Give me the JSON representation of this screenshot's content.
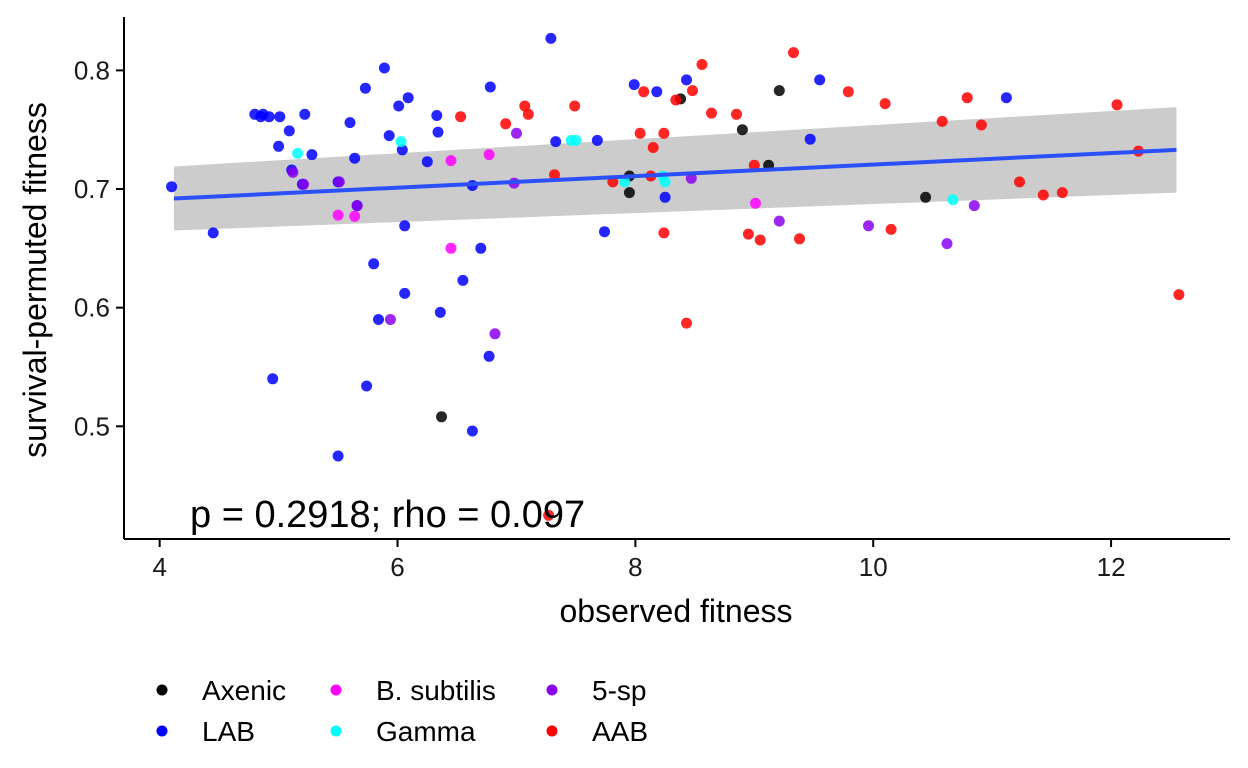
{
  "chart_data": {
    "type": "scatter",
    "xlabel": "observed fitness",
    "ylabel": "survival-permuted fitness",
    "xlim": [
      3.7,
      13.0
    ],
    "ylim": [
      0.405,
      0.845
    ],
    "xticks": [
      4,
      6,
      8,
      10,
      12
    ],
    "yticks": [
      0.5,
      0.6,
      0.7,
      0.8
    ],
    "grid": false,
    "legend_position": "bottom",
    "annotation": "p = 0.2918; rho = 0.097",
    "trend": {
      "x": [
        4.12,
        12.55
      ],
      "y": [
        0.692,
        0.733
      ],
      "band_lower": [
        0.665,
        0.697
      ],
      "band_upper": [
        0.719,
        0.769
      ],
      "line_color": "#2b50fa",
      "band_color": "#cccccc"
    },
    "series": [
      {
        "name": "Axenic",
        "color": "#000000",
        "points": [
          [
            6.37,
            0.508
          ],
          [
            7.95,
            0.711
          ],
          [
            7.95,
            0.697
          ],
          [
            8.38,
            0.776
          ],
          [
            8.9,
            0.75
          ],
          [
            9.12,
            0.72
          ],
          [
            9.21,
            0.783
          ],
          [
            10.44,
            0.693
          ]
        ]
      },
      {
        "name": "LAB",
        "color": "#0000ff",
        "points": [
          [
            4.1,
            0.702
          ],
          [
            4.45,
            0.663
          ],
          [
            4.8,
            0.763
          ],
          [
            4.85,
            0.761
          ],
          [
            4.87,
            0.763
          ],
          [
            4.92,
            0.761
          ],
          [
            5.01,
            0.761
          ],
          [
            5.0,
            0.736
          ],
          [
            5.09,
            0.749
          ],
          [
            5.11,
            0.716
          ],
          [
            5.2,
            0.704
          ],
          [
            5.22,
            0.763
          ],
          [
            5.28,
            0.729
          ],
          [
            5.5,
            0.706
          ],
          [
            5.6,
            0.756
          ],
          [
            5.64,
            0.726
          ],
          [
            5.66,
            0.686
          ],
          [
            5.73,
            0.785
          ],
          [
            5.8,
            0.637
          ],
          [
            5.84,
            0.59
          ],
          [
            5.89,
            0.802
          ],
          [
            5.93,
            0.745
          ],
          [
            6.01,
            0.77
          ],
          [
            6.04,
            0.733
          ],
          [
            6.06,
            0.669
          ],
          [
            6.06,
            0.612
          ],
          [
            6.09,
            0.777
          ],
          [
            6.25,
            0.723
          ],
          [
            6.33,
            0.762
          ],
          [
            6.34,
            0.748
          ],
          [
            6.36,
            0.596
          ],
          [
            6.55,
            0.623
          ],
          [
            6.63,
            0.703
          ],
          [
            6.7,
            0.65
          ],
          [
            6.77,
            0.559
          ],
          [
            6.78,
            0.786
          ],
          [
            6.63,
            0.496
          ],
          [
            4.95,
            0.54
          ],
          [
            5.74,
            0.534
          ],
          [
            5.5,
            0.475
          ],
          [
            7.29,
            0.827
          ],
          [
            7.33,
            0.74
          ],
          [
            7.68,
            0.741
          ],
          [
            7.74,
            0.664
          ],
          [
            7.99,
            0.788
          ],
          [
            8.18,
            0.782
          ],
          [
            8.25,
            0.693
          ],
          [
            8.43,
            0.792
          ],
          [
            9.47,
            0.742
          ],
          [
            9.55,
            0.792
          ],
          [
            11.12,
            0.777
          ]
        ]
      },
      {
        "name": "B. subtilis",
        "color": "#ff00ff",
        "points": [
          [
            5.5,
            0.678
          ],
          [
            5.64,
            0.677
          ],
          [
            6.45,
            0.724
          ],
          [
            6.45,
            0.65
          ],
          [
            6.77,
            0.729
          ],
          [
            9.01,
            0.688
          ]
        ]
      },
      {
        "name": "Gamma",
        "color": "#00ffff",
        "points": [
          [
            5.16,
            0.73
          ],
          [
            6.03,
            0.74
          ],
          [
            7.46,
            0.741
          ],
          [
            7.5,
            0.741
          ],
          [
            7.91,
            0.706
          ],
          [
            8.23,
            0.711
          ],
          [
            8.25,
            0.706
          ],
          [
            10.67,
            0.691
          ]
        ]
      },
      {
        "name": "5-sp",
        "color": "#8b00f0",
        "points": [
          [
            5.12,
            0.714
          ],
          [
            5.21,
            0.704
          ],
          [
            5.51,
            0.706
          ],
          [
            5.66,
            0.686
          ],
          [
            5.94,
            0.59
          ],
          [
            6.82,
            0.578
          ],
          [
            6.98,
            0.705
          ],
          [
            7.0,
            0.747
          ],
          [
            8.47,
            0.709
          ],
          [
            9.21,
            0.673
          ],
          [
            9.96,
            0.669
          ],
          [
            10.62,
            0.654
          ],
          [
            10.85,
            0.686
          ]
        ]
      },
      {
        "name": "AAB",
        "color": "#ff0000",
        "points": [
          [
            6.53,
            0.761
          ],
          [
            6.91,
            0.755
          ],
          [
            7.07,
            0.77
          ],
          [
            7.1,
            0.763
          ],
          [
            7.32,
            0.712
          ],
          [
            7.49,
            0.77
          ],
          [
            7.81,
            0.706
          ],
          [
            8.04,
            0.747
          ],
          [
            8.07,
            0.782
          ],
          [
            8.15,
            0.735
          ],
          [
            8.13,
            0.711
          ],
          [
            8.24,
            0.747
          ],
          [
            8.24,
            0.663
          ],
          [
            8.34,
            0.775
          ],
          [
            8.43,
            0.587
          ],
          [
            8.48,
            0.783
          ],
          [
            8.56,
            0.805
          ],
          [
            8.64,
            0.764
          ],
          [
            8.85,
            0.763
          ],
          [
            8.95,
            0.662
          ],
          [
            9.0,
            0.72
          ],
          [
            9.05,
            0.657
          ],
          [
            9.33,
            0.815
          ],
          [
            9.38,
            0.658
          ],
          [
            9.79,
            0.782
          ],
          [
            10.1,
            0.772
          ],
          [
            10.15,
            0.666
          ],
          [
            10.58,
            0.757
          ],
          [
            10.79,
            0.777
          ],
          [
            10.91,
            0.754
          ],
          [
            11.23,
            0.706
          ],
          [
            11.43,
            0.695
          ],
          [
            11.59,
            0.697
          ],
          [
            12.05,
            0.771
          ],
          [
            12.23,
            0.732
          ],
          [
            12.57,
            0.611
          ],
          [
            7.27,
            0.425
          ]
        ]
      }
    ]
  }
}
